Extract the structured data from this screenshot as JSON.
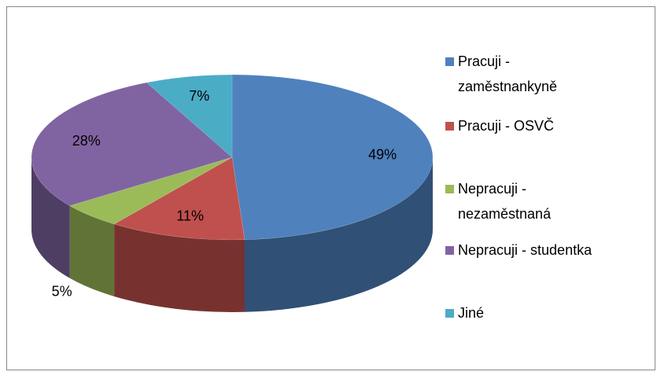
{
  "chart_data": {
    "type": "pie3d",
    "categories": [
      "Pracuji -\nzaměstnankyně",
      "Pracuji - OSVČ",
      "Nepracuji -\nnezaměstnaná",
      "Nepracuji - studentka",
      "Jiné"
    ],
    "values": [
      49,
      11,
      5,
      28,
      7
    ],
    "value_labels": [
      "49%",
      "11%",
      "5%",
      "28%",
      "7%"
    ],
    "colors": [
      "#4f81bd",
      "#c0504d",
      "#9bbb59",
      "#8064a2",
      "#4bacc6"
    ],
    "legend": "right"
  }
}
